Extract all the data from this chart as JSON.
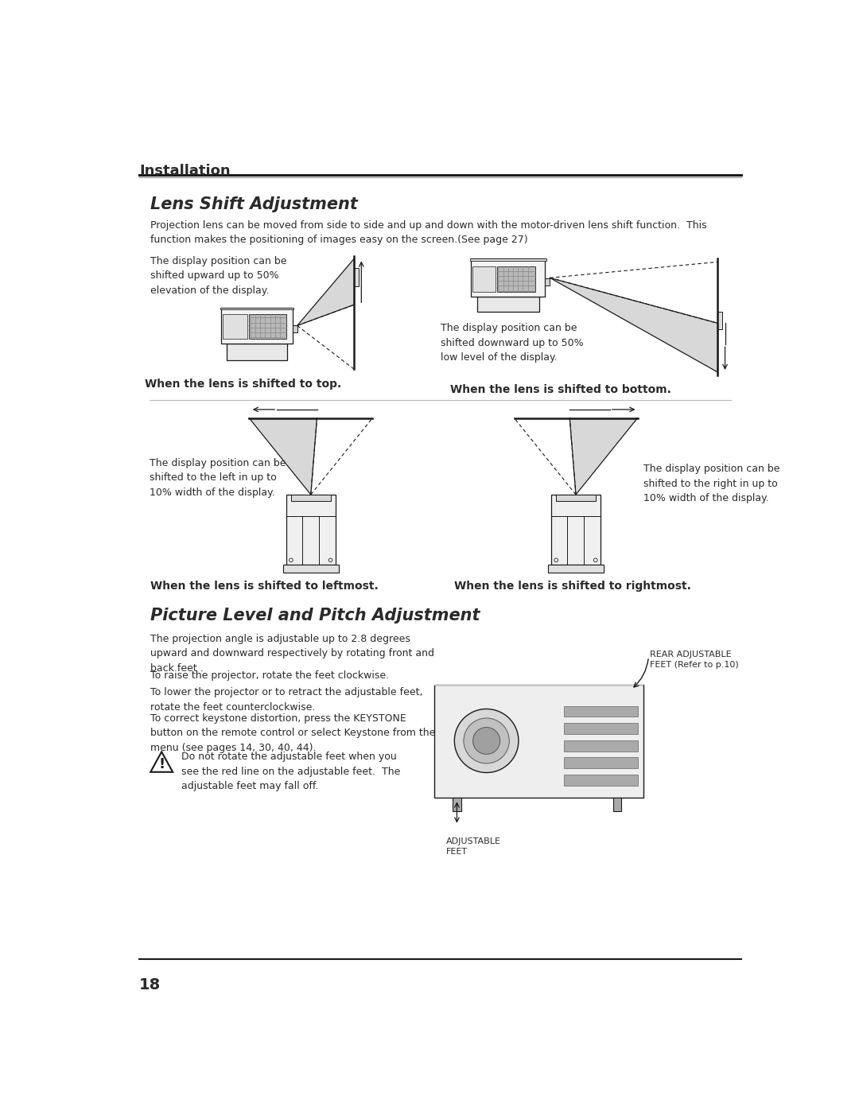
{
  "page_title": "Installation",
  "section1_title": "Lens Shift Adjustment",
  "section1_body": "Projection lens can be moved from side to side and up and down with the motor-driven lens shift function.  This\nfunction makes the positioning of images easy on the screen.(See page 27)",
  "top_left_caption": "The display position can be\nshifted upward up to 50%\nelevation of the display.",
  "top_left_label": "When the lens is shifted to top.",
  "top_right_caption": "The display position can be\nshifted downward up to 50%\nlow level of the display.",
  "top_right_label": "When the lens is shifted to bottom.",
  "bottom_left_caption": "The display position can be\nshifted to the left in up to\n10% width of the display.",
  "bottom_left_label": "When the lens is shifted to leftmost.",
  "bottom_right_caption": "The display position can be\nshifted to the right in up to\n10% width of the display.",
  "bottom_right_label": "When the lens is shifted to rightmost.",
  "section2_title": "Picture Level and Pitch Adjustment",
  "section2_body1": "The projection angle is adjustable up to 2.8 degrees\nupward and downward respectively by rotating front and\nback feet .",
  "section2_body2": "To raise the projector, rotate the feet clockwise.",
  "section2_body3": "To lower the projector or to retract the adjustable feet,\nrotate the feet counterclockwise.",
  "section2_body4": "To correct keystone distortion, press the KEYSTONE\nbutton on the remote control or select Keystone from the\nmenu (see pages 14, 30, 40, 44).",
  "warning_text": "Do not rotate the adjustable feet when you\nsee the red line on the adjustable feet.  The\nadjustable feet may fall off.",
  "rear_label": "REAR ADJUSTABLE\nFEET (Refer to p.10)",
  "front_label": "ADJUSTABLE\nFEET",
  "page_number": "18",
  "bg_color": "#ffffff",
  "text_color": "#2a2a2a",
  "line_color": "#1a1a1a",
  "gray_fill": "#cccccc",
  "light_gray": "#e8e8e8",
  "mid_gray": "#999999"
}
